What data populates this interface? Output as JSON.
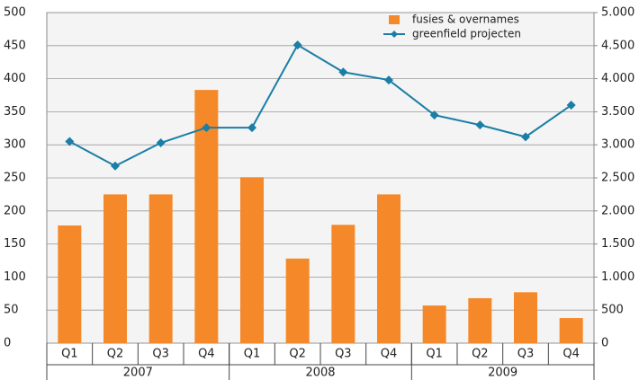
{
  "chart_data": {
    "type": "bar_line",
    "categories": [
      "Q1",
      "Q2",
      "Q3",
      "Q4",
      "Q1",
      "Q2",
      "Q3",
      "Q4",
      "Q1",
      "Q2",
      "Q3",
      "Q4"
    ],
    "category_groups": [
      "2007",
      "2008",
      "2009"
    ],
    "series": [
      {
        "name": "fusies & overnames",
        "type": "bar",
        "color": "#f5892a",
        "values": [
          178,
          225,
          225,
          383,
          251,
          128,
          179,
          225,
          57,
          68,
          77,
          38
        ]
      },
      {
        "name": "greenfield projecten",
        "type": "line",
        "axis": "y2",
        "color": "#1a7ea6",
        "values": [
          3050,
          2680,
          3030,
          3260,
          3260,
          4510,
          4100,
          3980,
          3450,
          3300,
          3120,
          3600
        ]
      }
    ],
    "ylim": [
      0,
      500
    ],
    "yticks": [
      0,
      50,
      100,
      150,
      200,
      250,
      300,
      350,
      400,
      450,
      500
    ],
    "y2lim": [
      0,
      5000
    ],
    "y2ticks": [
      0,
      500,
      {
        "value": 1000,
        "label": "1.000"
      },
      {
        "value": 1500,
        "label": "1.500"
      },
      {
        "value": 2000,
        "label": "2.000"
      },
      {
        "value": 2500,
        "label": "2.500"
      },
      {
        "value": 3000,
        "label": "3.000"
      },
      {
        "value": 3500,
        "label": "3.500"
      },
      {
        "value": 4000,
        "label": "4.000"
      },
      {
        "value": 4500,
        "label": "4.500"
      },
      {
        "value": 5000,
        "label": "5.000"
      }
    ],
    "grid": true,
    "legend": "upper right"
  }
}
